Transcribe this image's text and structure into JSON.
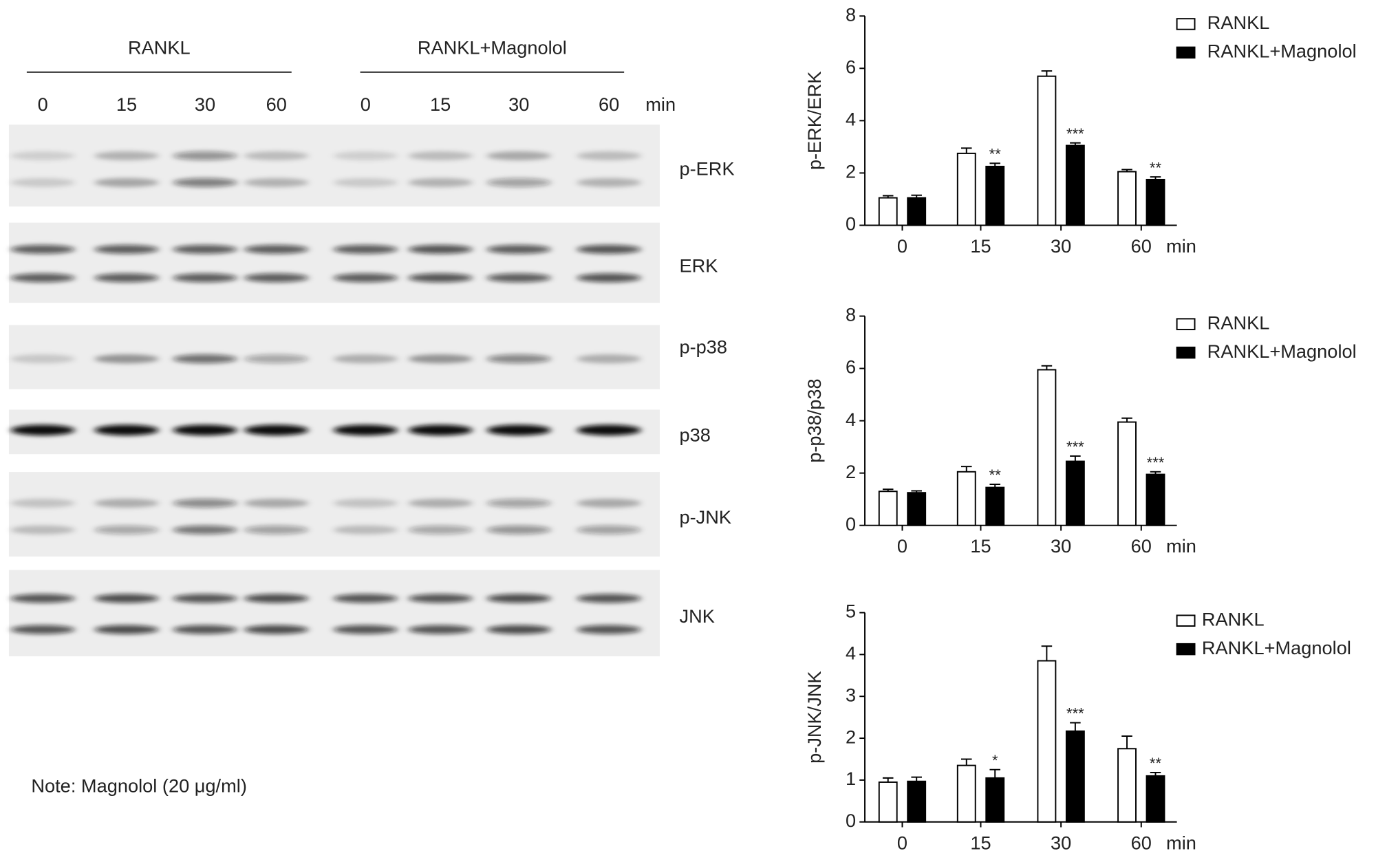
{
  "blot": {
    "groups": [
      "RANKL",
      "RANKL+Magnolol"
    ],
    "lanes": [
      "0",
      "15",
      "30",
      "60",
      "0",
      "15",
      "30",
      "60"
    ],
    "unit": "min",
    "proteins": [
      "p-ERK",
      "ERK",
      "p-p38",
      "p38",
      "p-JNK",
      "JNK"
    ],
    "note": "Note: Magnolol (20 μg/ml)"
  },
  "chart_data": [
    {
      "type": "bar",
      "ylabel": "p-ERK/ERK",
      "xlabel": "min",
      "categories": [
        "0",
        "15",
        "30",
        "60"
      ],
      "ylim": [
        0,
        8
      ],
      "yticks": [
        0,
        2,
        4,
        6,
        8
      ],
      "series": [
        {
          "name": "RANKL",
          "color": "#ffffff",
          "values": [
            1.05,
            2.75,
            5.7,
            2.05
          ],
          "errors": [
            0.08,
            0.2,
            0.2,
            0.08
          ],
          "annotations": [
            null,
            null,
            null,
            null
          ]
        },
        {
          "name": "RANKL+Magnolol",
          "color": "#000000",
          "values": [
            1.05,
            2.25,
            3.05,
            1.75
          ],
          "errors": [
            0.1,
            0.12,
            0.1,
            0.1
          ],
          "annotations": [
            null,
            "**",
            "***",
            "**"
          ]
        }
      ]
    },
    {
      "type": "bar",
      "ylabel": "p-p38/p38",
      "xlabel": "min",
      "categories": [
        "0",
        "15",
        "30",
        "60"
      ],
      "ylim": [
        0,
        8
      ],
      "yticks": [
        0,
        2,
        4,
        6,
        8
      ],
      "series": [
        {
          "name": "RANKL",
          "color": "#ffffff",
          "values": [
            1.3,
            2.05,
            5.95,
            3.95
          ],
          "errors": [
            0.08,
            0.2,
            0.15,
            0.15
          ],
          "annotations": [
            null,
            null,
            null,
            null
          ]
        },
        {
          "name": "RANKL+Magnolol",
          "color": "#000000",
          "values": [
            1.25,
            1.45,
            2.45,
            1.95
          ],
          "errors": [
            0.07,
            0.12,
            0.2,
            0.1
          ],
          "annotations": [
            null,
            "**",
            "***",
            "***"
          ]
        }
      ]
    },
    {
      "type": "bar",
      "ylabel": "p-JNK/JNK",
      "xlabel": "min",
      "categories": [
        "0",
        "15",
        "30",
        "60"
      ],
      "ylim": [
        0,
        5
      ],
      "yticks": [
        0,
        1,
        2,
        3,
        4,
        5
      ],
      "series": [
        {
          "name": "RANKL",
          "color": "#ffffff",
          "values": [
            0.95,
            1.35,
            3.85,
            1.75
          ],
          "errors": [
            0.1,
            0.15,
            0.35,
            0.3
          ],
          "annotations": [
            null,
            null,
            null,
            null
          ]
        },
        {
          "name": "RANKL+Magnolol",
          "color": "#000000",
          "values": [
            0.97,
            1.05,
            2.17,
            1.1
          ],
          "errors": [
            0.1,
            0.2,
            0.2,
            0.08
          ],
          "annotations": [
            null,
            "*",
            "***",
            "**"
          ]
        }
      ]
    }
  ]
}
